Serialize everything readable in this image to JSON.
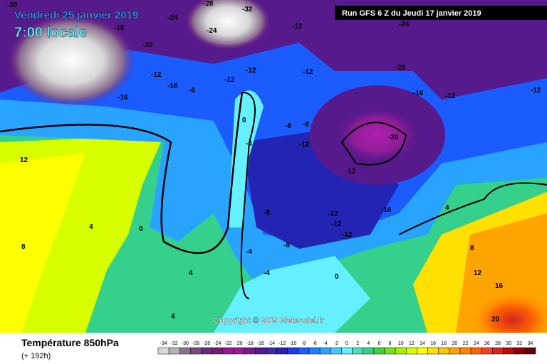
{
  "header": {
    "date": "Vendredi 25 janvier 2019",
    "time": "7:00 locale",
    "run": "Run GFS 6 Z du Jeudi 17 janvier 2019",
    "copyright": "Copyright © 2019 Meteociel.fr"
  },
  "footer": {
    "title": "Température 850hPa",
    "range": "(+ 192h)"
  },
  "scale": {
    "ticks": [
      -34,
      -32,
      -30,
      -28,
      -26,
      -24,
      -22,
      -20,
      -18,
      -16,
      -14,
      -12,
      -10,
      -8,
      -6,
      -4,
      -2,
      0,
      2,
      4,
      6,
      8,
      10,
      12,
      14,
      16,
      18,
      20,
      22,
      24,
      26,
      28,
      30,
      32,
      34
    ],
    "colors": [
      "#d8d8d8",
      "#b4b4b4",
      "#8c7090",
      "#7a4c80",
      "#6a2c78",
      "#7a1880",
      "#901c98",
      "#a4149c",
      "#7a1a8c",
      "#561a8c",
      "#3c2aa0",
      "#2424b4",
      "#1e3ce0",
      "#1a5cff",
      "#1e80ff",
      "#28a4ff",
      "#40c8ff",
      "#64f0ff",
      "#44e0c0",
      "#34d08c",
      "#40d040",
      "#74e020",
      "#a8f000",
      "#d8ff00",
      "#ffff00",
      "#ffe000",
      "#ffc400",
      "#ffa400",
      "#ff8400",
      "#ff6400",
      "#f04420",
      "#d42620",
      "#b41010",
      "#900000",
      "#640000"
    ]
  },
  "map_labels": [
    "-20",
    "-24",
    "-28",
    "-32",
    "-12",
    "-16",
    "-24",
    "-16",
    "-20",
    "-12",
    "-12",
    "-16",
    "-8",
    "-12",
    "-12",
    "-8",
    "-20",
    "-16",
    "-12",
    "-20",
    "-4",
    "0",
    "-8",
    "-12",
    "-12",
    "-8",
    "-12",
    "-16",
    "-12",
    "-12",
    "-4",
    "0",
    "4",
    "-8",
    "-4",
    "0",
    "4",
    "4",
    "8",
    "12",
    "16",
    "20",
    "4",
    "8",
    "12",
    "-24",
    "-12"
  ]
}
